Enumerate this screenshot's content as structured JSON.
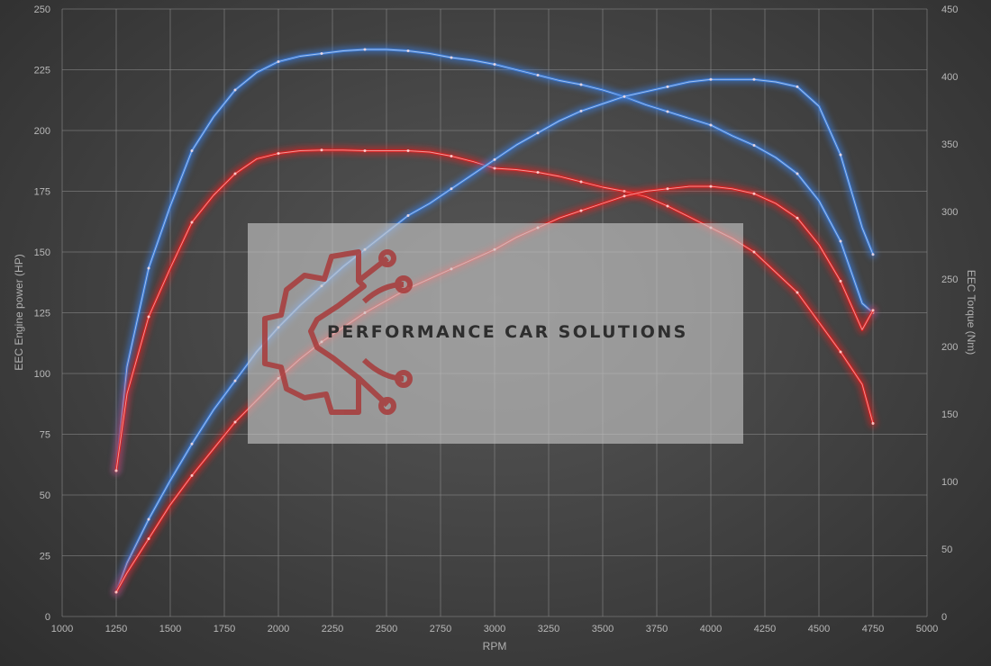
{
  "watermark": {
    "text": "PERFORMANCE CAR SOLUTIONS"
  },
  "colors": {
    "stock": "#3b7ddd",
    "tuned": "#e02020",
    "logo": "#a83a3a"
  },
  "chart_data": {
    "type": "line",
    "xlabel": "RPM",
    "ylabel_left": "EEC Engine power (HP)",
    "ylabel_right": "EEC Torque (Nm)",
    "xlim": [
      1000,
      5000
    ],
    "xticks": [
      1000,
      1250,
      1500,
      1750,
      2000,
      2250,
      2500,
      2750,
      3000,
      3250,
      3500,
      3750,
      4000,
      4250,
      4500,
      4750,
      5000
    ],
    "ylim_left": [
      0,
      250
    ],
    "yticks_left": [
      0,
      25,
      50,
      75,
      100,
      125,
      150,
      175,
      200,
      225,
      250
    ],
    "ylim_right": [
      0,
      450
    ],
    "yticks_right": [
      0,
      50,
      100,
      150,
      200,
      250,
      300,
      350,
      400,
      450
    ],
    "grid": true,
    "series": [
      {
        "color": "stock",
        "axis": "right",
        "x": [
          1250,
          1300,
          1400,
          1500,
          1600,
          1700,
          1800,
          1900,
          2000,
          2100,
          2200,
          2300,
          2400,
          2500,
          2600,
          2700,
          2800,
          2900,
          3000,
          3100,
          3200,
          3300,
          3400,
          3500,
          3600,
          3700,
          3800,
          3900,
          4000,
          4100,
          4200,
          4300,
          4400,
          4500,
          4600,
          4700,
          4750
        ],
        "y": [
          108,
          185,
          258,
          304,
          345,
          370,
          390,
          403,
          411,
          415,
          417,
          419,
          420,
          420,
          419,
          417,
          414,
          412,
          409,
          405,
          401,
          397,
          394,
          390,
          385,
          379,
          374,
          369,
          364,
          356,
          349,
          340,
          328,
          308,
          278,
          232,
          225
        ]
      },
      {
        "color": "tuned",
        "axis": "right",
        "x": [
          1250,
          1300,
          1400,
          1500,
          1600,
          1700,
          1800,
          1900,
          2000,
          2100,
          2200,
          2300,
          2400,
          2500,
          2600,
          2700,
          2800,
          2900,
          3000,
          3100,
          3200,
          3300,
          3400,
          3500,
          3600,
          3700,
          3800,
          3900,
          4000,
          4100,
          4200,
          4300,
          4400,
          4500,
          4600,
          4700,
          4750
        ],
        "y": [
          108,
          165,
          222,
          258,
          292,
          312,
          328,
          339,
          343,
          345,
          345.5,
          345.5,
          345,
          345,
          345,
          344,
          341,
          337,
          332,
          331,
          329,
          326,
          322,
          318,
          315,
          311,
          304,
          296,
          288,
          280,
          270,
          255,
          240,
          218,
          196,
          172,
          143
        ]
      },
      {
        "color": "stock",
        "axis": "left",
        "x": [
          1250,
          1300,
          1400,
          1500,
          1600,
          1700,
          1800,
          1900,
          2000,
          2100,
          2200,
          2300,
          2400,
          2500,
          2600,
          2700,
          2800,
          2900,
          3000,
          3100,
          3200,
          3300,
          3400,
          3500,
          3600,
          3700,
          3800,
          3900,
          4000,
          4100,
          4200,
          4300,
          4400,
          4500,
          4600,
          4700,
          4750
        ],
        "y": [
          10,
          22,
          40,
          56,
          71,
          85,
          97,
          109,
          119,
          128,
          136,
          144,
          151,
          158,
          165,
          170,
          176,
          182,
          188,
          194,
          199,
          204,
          208,
          211,
          214,
          216,
          218,
          220,
          221,
          221,
          221,
          220,
          218,
          210,
          190,
          160,
          149
        ]
      },
      {
        "color": "tuned",
        "axis": "left",
        "x": [
          1250,
          1300,
          1400,
          1500,
          1600,
          1700,
          1800,
          1900,
          2000,
          2100,
          2200,
          2300,
          2400,
          2500,
          2600,
          2700,
          2800,
          2900,
          3000,
          3100,
          3200,
          3300,
          3400,
          3500,
          3600,
          3700,
          3800,
          3900,
          4000,
          4100,
          4200,
          4300,
          4400,
          4500,
          4600,
          4700,
          4750
        ],
        "y": [
          10,
          18,
          32,
          46,
          58,
          69,
          80,
          89,
          98,
          106,
          113,
          119,
          125,
          130,
          135,
          139,
          143,
          147,
          151,
          156,
          160,
          164,
          167,
          170,
          173,
          175,
          176,
          177,
          177,
          176,
          174,
          170,
          164,
          153,
          138,
          118,
          126
        ]
      }
    ]
  }
}
